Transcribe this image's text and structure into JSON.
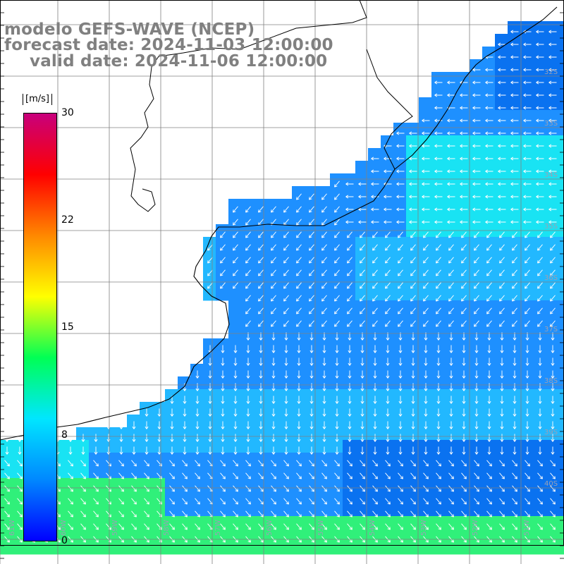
{
  "title": {
    "line1": "modelo GEFS-WAVE (NCEP)",
    "line2": "forecast date: 2024-11-03 12:00:00",
    "line3": "valid date: 2024-11-06 12:00:00"
  },
  "colorbar": {
    "unit": "[m/s]",
    "ticks": [
      "30",
      "22",
      "15",
      "8",
      "0"
    ],
    "range": [
      0,
      30
    ],
    "colors": [
      "#0000ff",
      "#0088ff",
      "#00e6ff",
      "#00ff55",
      "#ffff00",
      "#ff8800",
      "#ff0000",
      "#c8007c"
    ]
  },
  "map": {
    "lat_labels": [
      "32S",
      "33S",
      "34S",
      "35S",
      "36S",
      "37S",
      "38S",
      "39S",
      "40S"
    ],
    "lon_labels": [
      "61W",
      "60W",
      "59W",
      "58W",
      "57W",
      "56W",
      "55W",
      "54W",
      "53W",
      "52W",
      "51W"
    ],
    "ocean_colors": {
      "deep_blue": "#0a72f0",
      "blue": "#1e90ff",
      "light_blue": "#22b8ff",
      "cyan": "#19e3f3",
      "green": "#30f07a"
    },
    "coast_color": "#000000",
    "grid_color": "#808080",
    "arrow_color": "#ffffff"
  }
}
